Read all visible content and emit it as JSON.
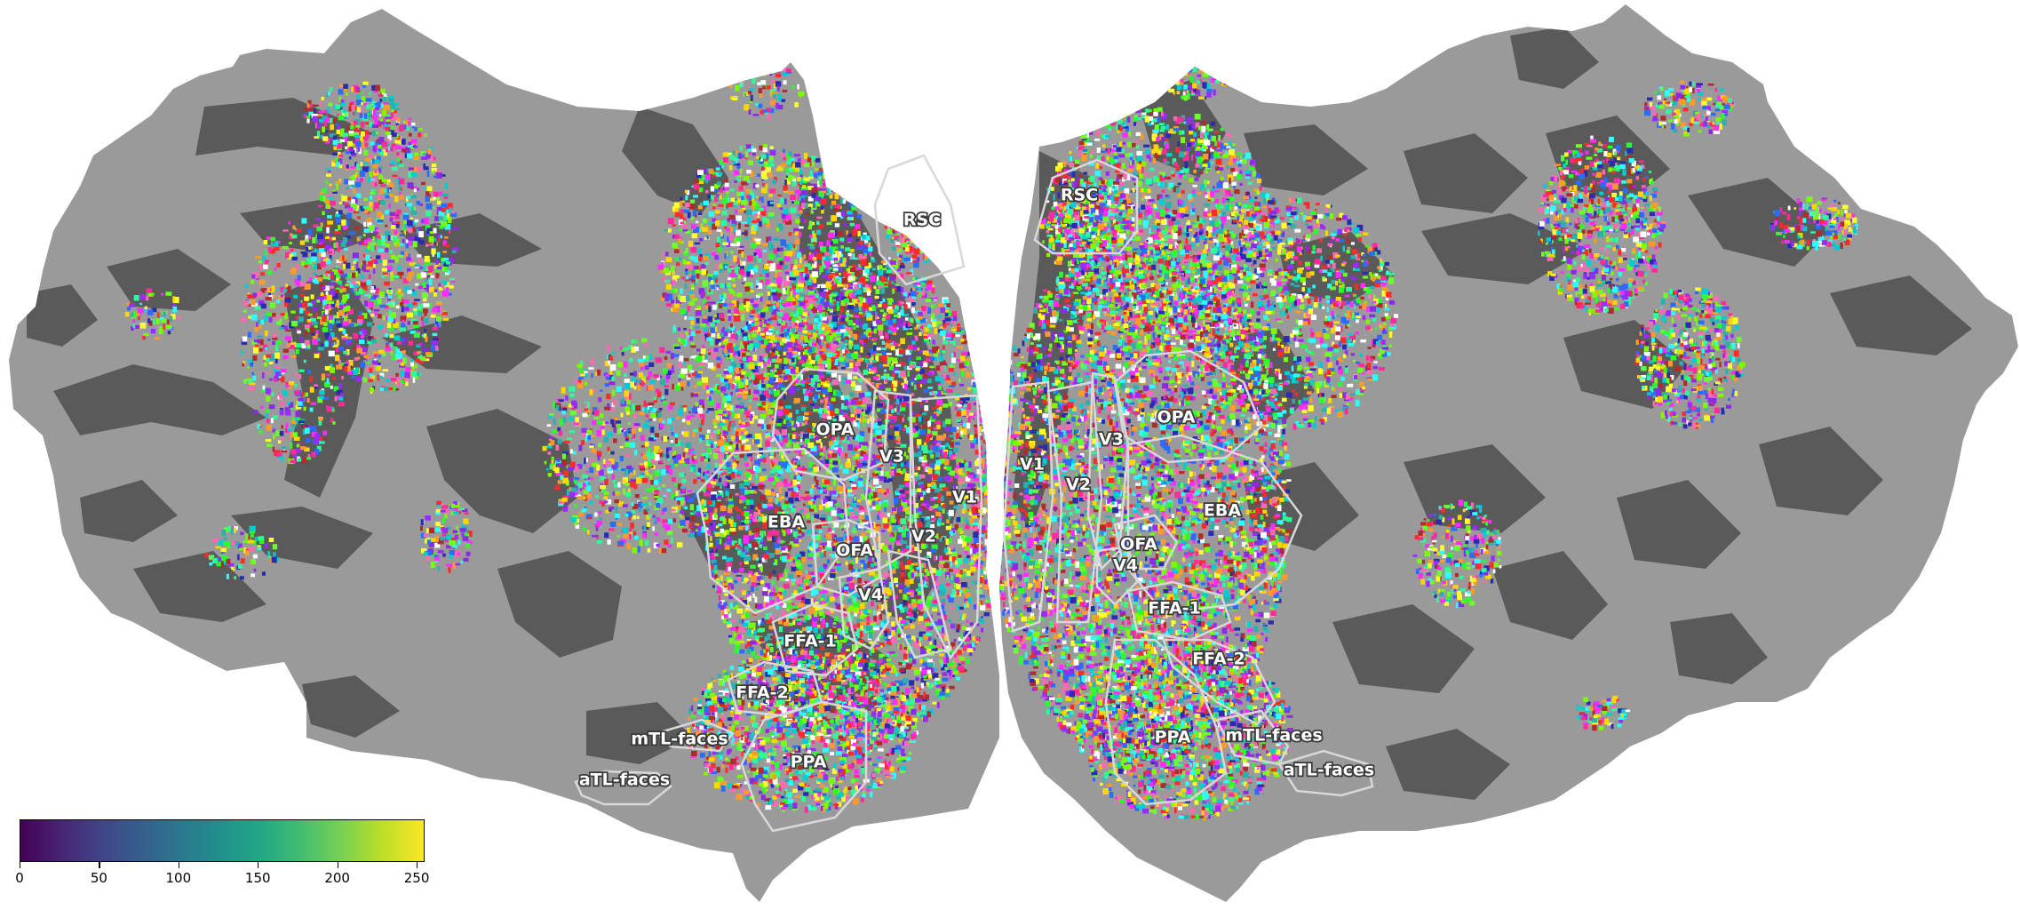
{
  "figure": {
    "hemispheres": [
      "left",
      "right"
    ],
    "colors": {
      "gyri": "#9a9a9a",
      "sulci": "#5a5a5a",
      "background": "#ffffff",
      "roi_outline": "#d8d8d8"
    }
  },
  "roi_labels": {
    "left": {
      "rsc": "RSC",
      "opa": "OPA",
      "v3": "V3",
      "v1": "V1",
      "eba": "EBA",
      "ofa": "OFA",
      "v2": "V2",
      "v4": "V4",
      "ffa1": "FFA-1",
      "ffa2": "FFA-2",
      "mtl": "mTL-faces",
      "atl": "aTL-faces",
      "ppa": "PPA"
    },
    "right": {
      "rsc": "RSC",
      "opa": "OPA",
      "v1": "V1",
      "v3": "V3",
      "v2": "V2",
      "eba": "EBA",
      "ofa": "OFA",
      "v4": "V4",
      "ffa1": "FFA-1",
      "ffa2": "FFA-2",
      "ppa": "PPA",
      "mtl": "mTL-faces",
      "atl": "aTL-faces"
    }
  },
  "colorbar": {
    "colormap": "viridis",
    "range": [
      0,
      255
    ],
    "ticks": [
      "0",
      "50",
      "100",
      "150",
      "200",
      "250"
    ],
    "tick_values": [
      0,
      50,
      100,
      150,
      200,
      250
    ]
  }
}
